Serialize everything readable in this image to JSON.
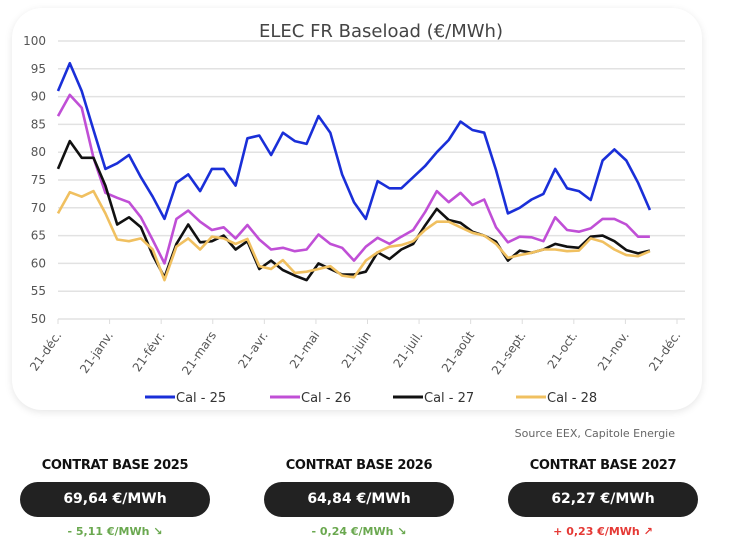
{
  "chart_data": {
    "type": "line",
    "title": "ELEC FR Baseload (€/MWh)",
    "ylim": [
      50,
      100
    ],
    "yticks": [
      50,
      55,
      60,
      65,
      70,
      75,
      80,
      85,
      90,
      95,
      100
    ],
    "xtick_labels": [
      "21-déc.",
      "21-janv.",
      "21-févr.",
      "21-mars",
      "21-avr.",
      "21-mai",
      "21-juin",
      "21-juil.",
      "21-août",
      "21-sept.",
      "21-oct.",
      "21-nov.",
      "21-déc."
    ],
    "grid": "horizontal",
    "legend": "bottom",
    "x": [
      "21-déc.",
      "28-déc.",
      "4-janv.",
      "11-janv.",
      "18-janv.",
      "25-janv.",
      "1-févr.",
      "8-févr.",
      "15-févr.",
      "22-févr.",
      "29-févr.",
      "7-mars",
      "14-mars",
      "21-mars",
      "28-mars",
      "4-avr.",
      "11-avr.",
      "18-avr.",
      "25-avr.",
      "2-mai",
      "9-mai",
      "16-mai",
      "23-mai",
      "30-mai",
      "6-juin",
      "13-juin",
      "20-juin",
      "27-juin",
      "4-juil.",
      "11-juil.",
      "18-juil.",
      "25-juil.",
      "1-août",
      "8-août",
      "15-août",
      "22-août",
      "29-août",
      "5-sept.",
      "12-sept.",
      "19-sept.",
      "26-sept.",
      "3-oct.",
      "10-oct.",
      "17-oct.",
      "24-oct.",
      "31-oct.",
      "7-nov.",
      "14-nov.",
      "21-nov.",
      "28-nov.",
      "5-déc."
    ],
    "series": [
      {
        "name": "Cal - 25",
        "color": "#1a2fd8",
        "values": [
          91,
          96,
          91,
          84,
          77,
          78,
          79.5,
          75.5,
          72,
          68,
          74.5,
          76,
          73,
          77,
          77,
          74,
          82.5,
          83,
          79.5,
          83.5,
          82,
          81.5,
          86.5,
          83.5,
          76,
          71,
          68,
          74.8,
          73.5,
          73.5,
          75.5,
          77.5,
          80,
          82.2,
          85.5,
          84,
          83.5,
          76.8,
          69,
          70,
          71.5,
          72.5,
          77,
          73.5,
          73,
          71.4,
          78.5,
          80.5,
          78.5,
          74.5,
          69.6
        ]
      },
      {
        "name": "Cal - 26",
        "color": "#c04fd6",
        "values": [
          86.5,
          90.3,
          88,
          79,
          72.7,
          71.8,
          71,
          68.3,
          64.2,
          60,
          68,
          69.5,
          67.5,
          66,
          66.5,
          64.5,
          66.9,
          64.3,
          62.5,
          62.8,
          62.2,
          62.5,
          65.2,
          63.5,
          62.8,
          60.5,
          63,
          64.6,
          63.5,
          64.8,
          66,
          69.2,
          73,
          71,
          72.7,
          70.5,
          71.5,
          66.5,
          63.8,
          64.8,
          64.7,
          64,
          68.3,
          66,
          65.7,
          66.3,
          68,
          68,
          67,
          64.8,
          64.8
        ]
      },
      {
        "name": "Cal - 27",
        "color": "#111111",
        "values": [
          77,
          82,
          79,
          79,
          74,
          67,
          68.3,
          66.5,
          61.5,
          57.5,
          63.5,
          67,
          63.8,
          64,
          65,
          62.5,
          64,
          59,
          60.5,
          58.8,
          57.8,
          57,
          60,
          59,
          58,
          58,
          58.5,
          62,
          60.8,
          62.5,
          63.5,
          66.8,
          69.8,
          67.8,
          67.3,
          65.7,
          65,
          63.9,
          60.5,
          62.3,
          61.9,
          62.5,
          63.5,
          63,
          62.8,
          64.8,
          65,
          64,
          62.4,
          61.8,
          62.3
        ]
      },
      {
        "name": "Cal - 28",
        "color": "#f0c060",
        "values": [
          69,
          72.8,
          72,
          73,
          69,
          64.3,
          64,
          64.5,
          62.5,
          57,
          63,
          64.5,
          62.5,
          64.8,
          64.5,
          63.5,
          64.4,
          59.5,
          59,
          60.6,
          58.3,
          58.5,
          59,
          59.5,
          57.8,
          57.5,
          60.5,
          62,
          63,
          63.3,
          64,
          66,
          67.5,
          67.5,
          66.5,
          65.5,
          65,
          63.5,
          61,
          61.5,
          61.9,
          62.5,
          62.5,
          62.2,
          62.3,
          64.5,
          63.9,
          62.5,
          61.5,
          61.3,
          62.2
        ]
      }
    ]
  },
  "source": "Source EEX, Capitole Energie",
  "contracts": [
    {
      "title": "CONTRAT BASE 2025",
      "price": "69,64 €/MWh",
      "delta": "- 5,11 €/MWh",
      "arrow": "↘",
      "direction": "down",
      "color": "#6aa84f"
    },
    {
      "title": "CONTRAT BASE 2026",
      "price": "64,84 €/MWh",
      "delta": "- 0,24 €/MWh",
      "arrow": "↘",
      "direction": "down",
      "color": "#6aa84f"
    },
    {
      "title": "CONTRAT BASE 2027",
      "price": "62,27 €/MWh",
      "delta": "+ 0,23 €/MWh",
      "arrow": "↗",
      "direction": "up",
      "color": "#e53935"
    }
  ]
}
